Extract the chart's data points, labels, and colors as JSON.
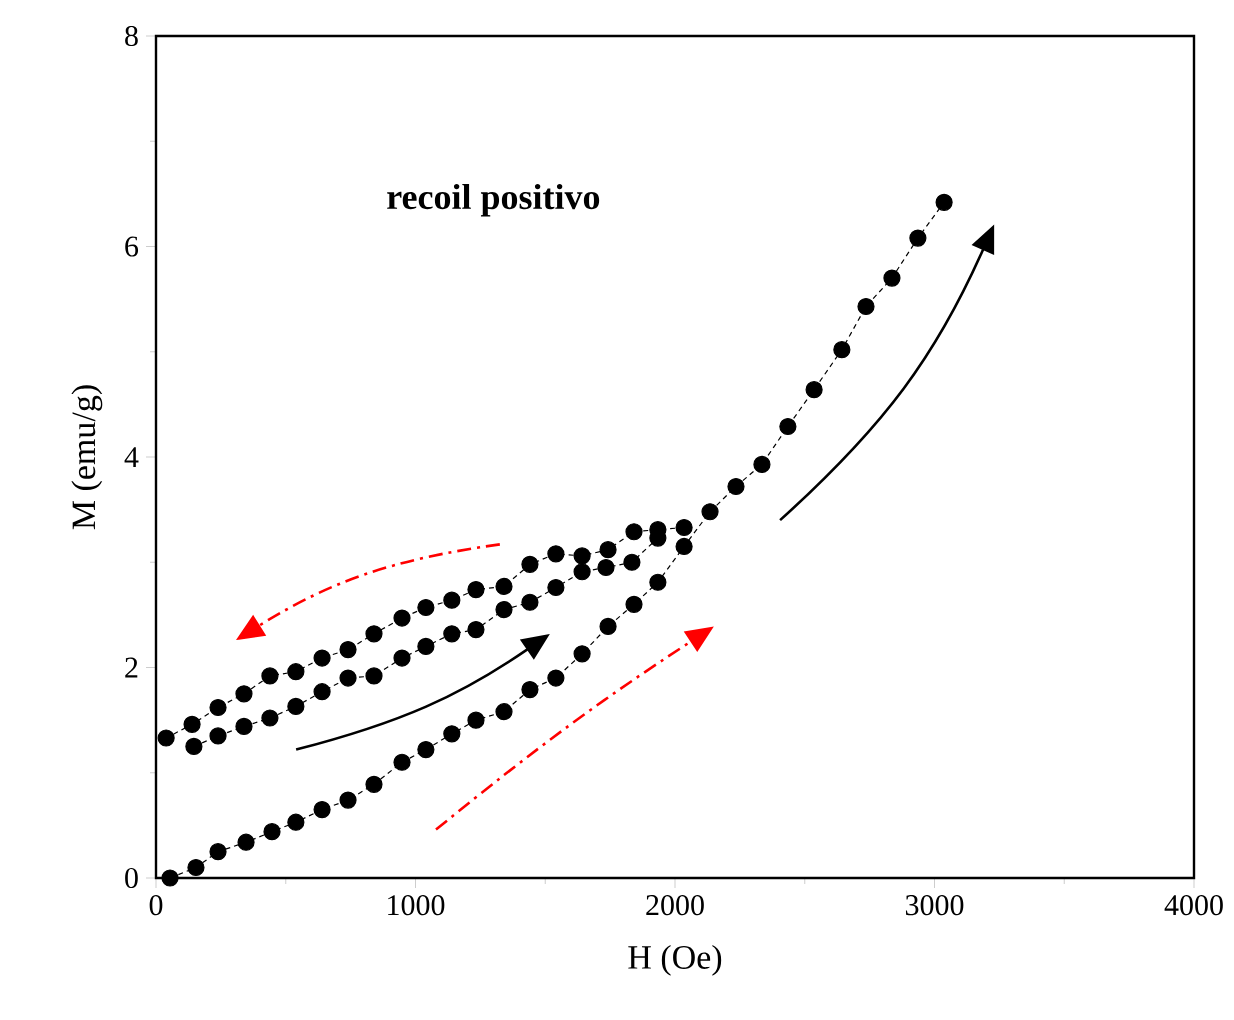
{
  "chart_data": {
    "type": "line",
    "xlabel": "H (Oe)",
    "ylabel": "M (emu/g)",
    "annotations": [
      "recoil positivo"
    ],
    "xlim": [
      0,
      4000
    ],
    "xticks": [
      0,
      1000,
      2000,
      3000,
      4000
    ],
    "ylim": [
      0,
      8
    ],
    "yticks": [
      0,
      2,
      4,
      6,
      8
    ],
    "marker": "circle",
    "line_style": "dashed",
    "grid": false,
    "series": [
      {
        "color": "#000000",
        "x": [
          54,
          154,
          239,
          347,
          447,
          539,
          640,
          740,
          840,
          948,
          1040,
          1140,
          1233,
          1341,
          1441,
          1541,
          1642,
          1742,
          1842,
          1934,
          2035,
          2135,
          2235,
          2335,
          2435,
          2536,
          2643,
          2736,
          2836,
          2936,
          3037
        ],
        "values": [
          0.0,
          0.1,
          0.25,
          0.34,
          0.44,
          0.53,
          0.65,
          0.74,
          0.89,
          1.1,
          1.22,
          1.37,
          1.5,
          1.58,
          1.79,
          1.9,
          2.13,
          2.39,
          2.6,
          2.81,
          3.15,
          3.48,
          3.72,
          3.93,
          4.29,
          4.64,
          5.02,
          5.43,
          5.7,
          6.08,
          6.42
        ]
      },
      {
        "color": "#000000",
        "x": [
          2035,
          1934,
          1842,
          1742,
          1642,
          1541,
          1441,
          1341,
          1233,
          1140,
          1040,
          948,
          840,
          740,
          640,
          539,
          439,
          339,
          239,
          139,
          39
        ],
        "values": [
          3.33,
          3.31,
          3.29,
          3.12,
          3.06,
          3.08,
          2.98,
          2.77,
          2.74,
          2.64,
          2.57,
          2.47,
          2.32,
          2.17,
          2.09,
          1.96,
          1.92,
          1.75,
          1.62,
          1.46,
          1.33
        ]
      },
      {
        "color": "#000000",
        "x": [
          146,
          239,
          339,
          439,
          539,
          640,
          740,
          840,
          948,
          1040,
          1140,
          1233,
          1341,
          1441,
          1541,
          1642,
          1734,
          1834,
          1934
        ],
        "values": [
          1.25,
          1.35,
          1.44,
          1.52,
          1.63,
          1.77,
          1.9,
          1.92,
          2.09,
          2.2,
          2.32,
          2.36,
          2.55,
          2.62,
          2.76,
          2.91,
          2.95,
          3.0,
          3.23
        ]
      }
    ]
  }
}
